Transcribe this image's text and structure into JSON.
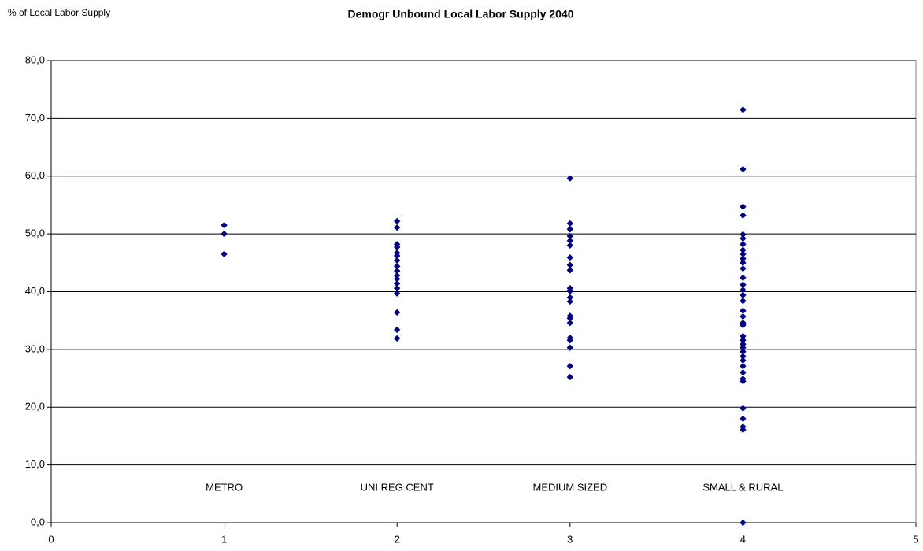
{
  "chart_data": {
    "type": "scatter",
    "title": "Demogr Unbound Local Labor Supply 2040",
    "y_label": "% of Local Labor Supply",
    "annotations": [
      "METRO",
      "UNI REG CENT",
      "MEDIUM SIZED",
      "SMALL & RURAL"
    ],
    "xlim": [
      0,
      5
    ],
    "xticks": [
      0,
      1,
      2,
      3,
      4,
      5
    ],
    "ylim": [
      0,
      80
    ],
    "yticks": [
      {
        "value": 0,
        "label": "0,0"
      },
      {
        "value": 10,
        "label": "10,0"
      },
      {
        "value": 20,
        "label": "20,0"
      },
      {
        "value": 30,
        "label": "30,0"
      },
      {
        "value": 40,
        "label": "40,0"
      },
      {
        "value": 50,
        "label": "50,0"
      },
      {
        "value": 60,
        "label": "60,0"
      },
      {
        "value": 70,
        "label": "70,0"
      },
      {
        "value": 80,
        "label": "80,0"
      }
    ],
    "grid": true,
    "series": [
      {
        "color": "#000080",
        "x": [
          1,
          1,
          1,
          2,
          2,
          2,
          2,
          2,
          2,
          2,
          2,
          2,
          2,
          2,
          2,
          2,
          2,
          2,
          2,
          2,
          3,
          3,
          3,
          3,
          3,
          3,
          3,
          3,
          3,
          3,
          3,
          3,
          3,
          3,
          3,
          3,
          3,
          3,
          3,
          3,
          3,
          4,
          4,
          4,
          4,
          4,
          4,
          4,
          4,
          4,
          4,
          4,
          4,
          4,
          4,
          4,
          4,
          4,
          4,
          4,
          4,
          4,
          4,
          4,
          4,
          4,
          4,
          4,
          4,
          4,
          4,
          4,
          4,
          4,
          4,
          4,
          4,
          4
        ],
        "values": [
          51.5,
          50.0,
          46.5,
          52.2,
          51.1,
          48.2,
          47.7,
          46.7,
          46.2,
          45.4,
          44.4,
          43.6,
          42.8,
          42.2,
          41.4,
          40.6,
          39.7,
          36.4,
          33.4,
          31.9,
          59.6,
          51.8,
          50.8,
          49.6,
          48.8,
          48.0,
          45.9,
          44.6,
          43.7,
          40.6,
          40.1,
          39.0,
          38.3,
          35.8,
          35.4,
          34.6,
          32.0,
          31.6,
          30.3,
          27.1,
          25.2,
          71.5,
          61.2,
          54.7,
          53.2,
          49.9,
          49.2,
          48.2,
          47.2,
          46.5,
          45.7,
          45.0,
          44.0,
          42.4,
          41.2,
          40.3,
          39.4,
          38.4,
          36.7,
          35.7,
          34.6,
          34.2,
          32.3,
          31.6,
          30.9,
          30.3,
          29.6,
          28.8,
          28.1,
          27.1,
          26.0,
          24.9,
          24.5,
          19.8,
          18.0,
          16.6,
          16.1,
          0
        ]
      }
    ]
  }
}
